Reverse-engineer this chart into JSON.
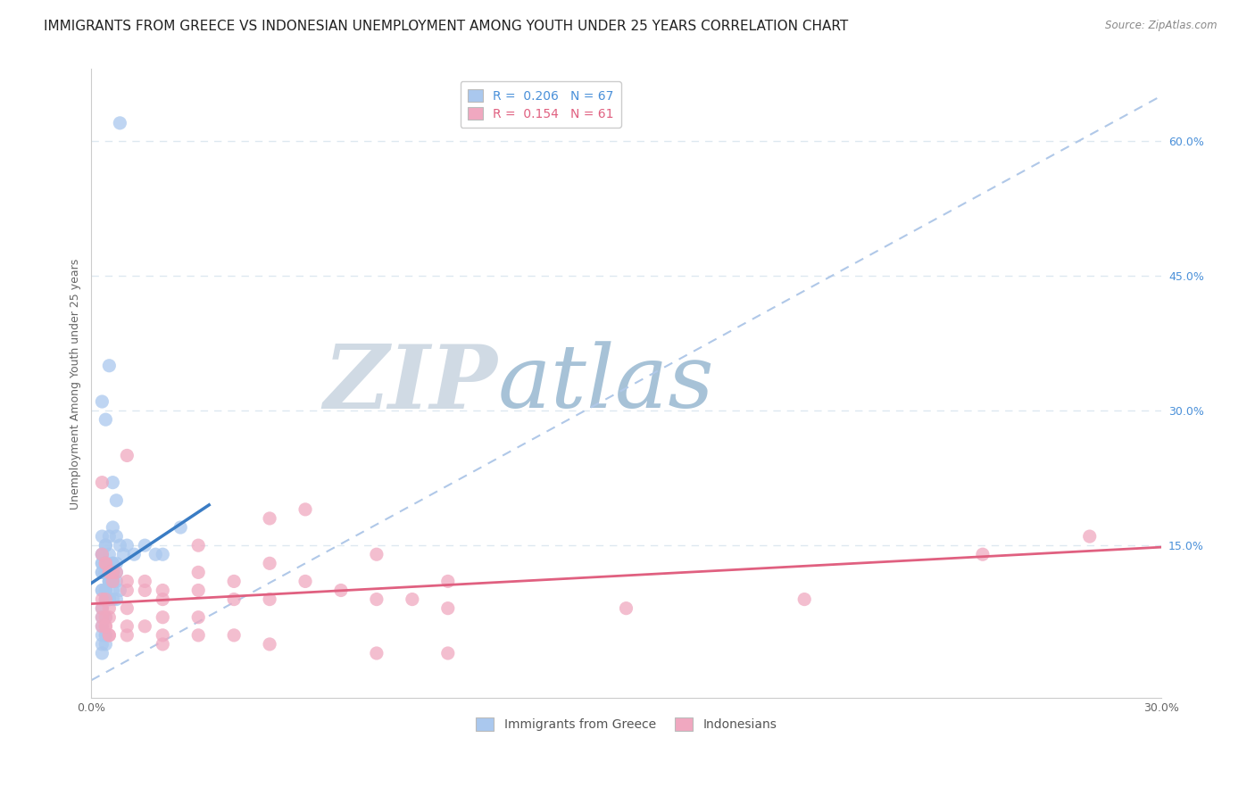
{
  "title": "IMMIGRANTS FROM GREECE VS INDONESIAN UNEMPLOYMENT AMONG YOUTH UNDER 25 YEARS CORRELATION CHART",
  "source": "Source: ZipAtlas.com",
  "ylabel": "Unemployment Among Youth under 25 years",
  "xlim": [
    0.0,
    0.3
  ],
  "ylim": [
    -0.02,
    0.68
  ],
  "yticks_right": [
    0.15,
    0.3,
    0.45,
    0.6
  ],
  "ytick_right_labels": [
    "15.0%",
    "30.0%",
    "45.0%",
    "60.0%"
  ],
  "series1_color": "#aac8ee",
  "series2_color": "#f0a8c0",
  "trendline1_color": "#3a7cc4",
  "trendline2_color": "#e06080",
  "diag_line_color": "#b0c8e8",
  "grid_color": "#dde8f0",
  "watermark_zip": "ZIP",
  "watermark_atlas": "atlas",
  "watermark_color_zip": "#c8d8e8",
  "watermark_color_atlas": "#a0c0d8",
  "title_fontsize": 11,
  "axis_label_fontsize": 9,
  "tick_fontsize": 9,
  "legend_fontsize": 10,
  "blue_scatter_x": [
    0.008,
    0.003,
    0.005,
    0.006,
    0.004,
    0.007,
    0.003,
    0.005,
    0.006,
    0.004,
    0.006,
    0.003,
    0.004,
    0.005,
    0.007,
    0.008,
    0.003,
    0.004,
    0.005,
    0.006,
    0.003,
    0.004,
    0.005,
    0.006,
    0.007,
    0.003,
    0.004,
    0.005,
    0.006,
    0.007,
    0.003,
    0.004,
    0.005,
    0.006,
    0.003,
    0.004,
    0.005,
    0.003,
    0.004,
    0.005,
    0.003,
    0.004,
    0.005,
    0.003,
    0.004,
    0.003,
    0.004,
    0.003,
    0.004,
    0.003,
    0.006,
    0.007,
    0.008,
    0.009,
    0.01,
    0.012,
    0.015,
    0.018,
    0.02,
    0.025,
    0.003,
    0.004,
    0.005,
    0.006,
    0.007,
    0.003,
    0.004
  ],
  "blue_scatter_y": [
    0.62,
    0.14,
    0.16,
    0.13,
    0.15,
    0.12,
    0.12,
    0.11,
    0.11,
    0.1,
    0.1,
    0.13,
    0.12,
    0.11,
    0.11,
    0.1,
    0.14,
    0.13,
    0.12,
    0.12,
    0.1,
    0.1,
    0.09,
    0.09,
    0.09,
    0.16,
    0.15,
    0.14,
    0.13,
    0.13,
    0.12,
    0.12,
    0.11,
    0.11,
    0.08,
    0.09,
    0.09,
    0.13,
    0.12,
    0.12,
    0.1,
    0.09,
    0.09,
    0.07,
    0.07,
    0.05,
    0.05,
    0.04,
    0.04,
    0.03,
    0.17,
    0.16,
    0.15,
    0.14,
    0.15,
    0.14,
    0.15,
    0.14,
    0.14,
    0.17,
    0.31,
    0.29,
    0.35,
    0.22,
    0.2,
    0.06,
    0.05
  ],
  "pink_scatter_x": [
    0.003,
    0.004,
    0.005,
    0.006,
    0.007,
    0.01,
    0.015,
    0.02,
    0.03,
    0.04,
    0.05,
    0.06,
    0.07,
    0.08,
    0.09,
    0.1,
    0.05,
    0.06,
    0.08,
    0.1,
    0.003,
    0.004,
    0.005,
    0.006,
    0.01,
    0.015,
    0.02,
    0.03,
    0.04,
    0.05,
    0.003,
    0.004,
    0.005,
    0.01,
    0.015,
    0.02,
    0.03,
    0.04,
    0.003,
    0.004,
    0.005,
    0.01,
    0.02,
    0.03,
    0.003,
    0.004,
    0.005,
    0.01,
    0.02,
    0.05,
    0.08,
    0.1,
    0.15,
    0.2,
    0.25,
    0.28,
    0.003,
    0.004,
    0.005,
    0.01,
    0.03
  ],
  "pink_scatter_y": [
    0.22,
    0.13,
    0.12,
    0.11,
    0.12,
    0.1,
    0.1,
    0.09,
    0.12,
    0.11,
    0.13,
    0.11,
    0.1,
    0.09,
    0.09,
    0.08,
    0.18,
    0.19,
    0.14,
    0.11,
    0.14,
    0.13,
    0.12,
    0.12,
    0.11,
    0.11,
    0.1,
    0.1,
    0.09,
    0.09,
    0.08,
    0.07,
    0.07,
    0.06,
    0.06,
    0.05,
    0.05,
    0.05,
    0.09,
    0.09,
    0.08,
    0.08,
    0.07,
    0.07,
    0.06,
    0.06,
    0.05,
    0.05,
    0.04,
    0.04,
    0.03,
    0.03,
    0.08,
    0.09,
    0.14,
    0.16,
    0.07,
    0.06,
    0.05,
    0.25,
    0.15
  ],
  "blue_trend_x": [
    0.0,
    0.033
  ],
  "blue_trend_y": [
    0.108,
    0.195
  ],
  "pink_trend_x": [
    0.0,
    0.3
  ],
  "pink_trend_y": [
    0.085,
    0.148
  ]
}
